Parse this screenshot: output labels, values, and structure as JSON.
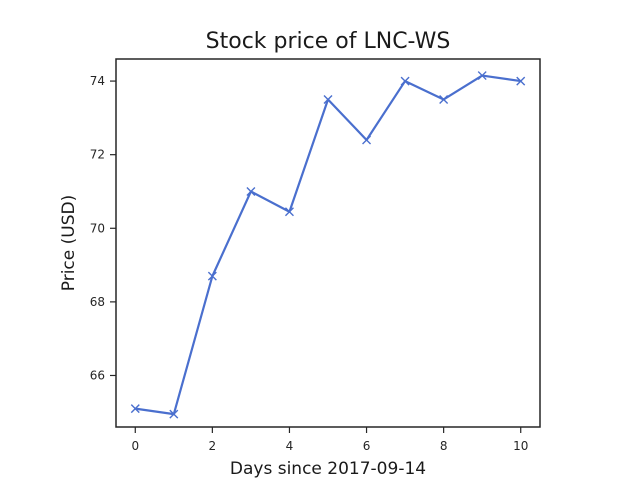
{
  "chart_data": {
    "type": "line",
    "title": "Stock price of LNC-WS",
    "xlabel": "Days since 2017-09-14",
    "ylabel": "Price (USD)",
    "xlim": [
      -0.5,
      10.5
    ],
    "ylim": [
      64.6,
      74.6
    ],
    "x_ticks": [
      0,
      2,
      4,
      6,
      8,
      10
    ],
    "y_ticks": [
      66,
      68,
      70,
      72,
      74
    ],
    "grid": false,
    "series": [
      {
        "color": "#4a6fce",
        "marker": "x",
        "x": [
          0,
          1,
          2,
          3,
          4,
          5,
          6,
          7,
          8,
          9,
          10
        ],
        "y": [
          65.1,
          64.95,
          68.7,
          71.0,
          70.45,
          73.5,
          72.4,
          74.0,
          73.5,
          74.15,
          74.0
        ]
      }
    ]
  }
}
